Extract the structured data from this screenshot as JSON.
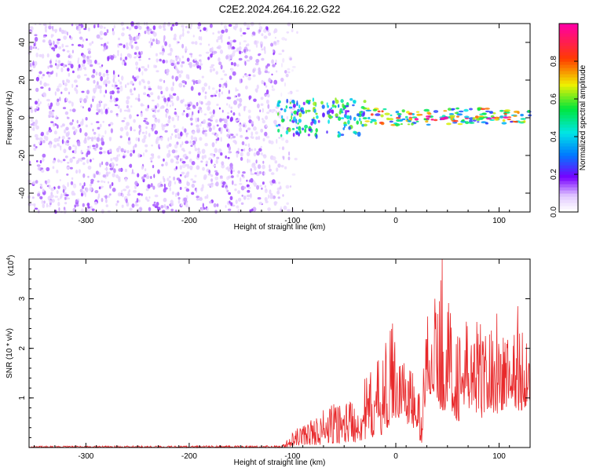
{
  "title": "C2E2.2024.264.16.22.G22",
  "colorbar": {
    "label": "Normalized spectral amplitude",
    "ticks": [
      {
        "value": 0.0,
        "label": "0.0"
      },
      {
        "value": 0.2,
        "label": "0.2"
      },
      {
        "value": 0.4,
        "label": "0.4"
      },
      {
        "value": 0.6,
        "label": "0.6"
      },
      {
        "value": 0.8,
        "label": "0.8"
      }
    ]
  },
  "chart_data": [
    {
      "type": "heatmap",
      "xlabel": "Height of straight line (km)",
      "ylabel": "Frequency (Hz)",
      "xlim": [
        -355,
        130
      ],
      "ylim": [
        -50,
        50
      ],
      "xticks": [
        {
          "value": -300,
          "label": "-300"
        },
        {
          "value": -200,
          "label": "-200"
        },
        {
          "value": -100,
          "label": "-100"
        },
        {
          "value": 0,
          "label": "0"
        },
        {
          "value": 100,
          "label": "100"
        }
      ],
      "yticks": [
        {
          "value": -40,
          "label": "-40"
        },
        {
          "value": -20,
          "label": "-20"
        },
        {
          "value": 0,
          "label": "0"
        },
        {
          "value": 20,
          "label": "20"
        },
        {
          "value": 40,
          "label": "40"
        }
      ],
      "regions": [
        {
          "x": [
            -355,
            -115
          ],
          "y": [
            -50,
            50
          ],
          "amplitude": 0.1,
          "density": 0.75
        },
        {
          "x": [
            -115,
            -95
          ],
          "y": [
            -50,
            50
          ],
          "amplitude": 0.06,
          "density": 0.35
        },
        {
          "x": [
            -115,
            -30
          ],
          "y": [
            -10,
            10
          ],
          "amplitude": 0.4,
          "density": 0.9
        },
        {
          "x": [
            -30,
            130
          ],
          "y": [
            -4,
            5
          ],
          "amplitude": 0.55,
          "density": 1.0
        },
        {
          "x": [
            10,
            130
          ],
          "y": [
            -1,
            1
          ],
          "amplitude": 0.9,
          "density": 1.0
        }
      ]
    },
    {
      "type": "line",
      "xlabel": "Height of straight line (km)",
      "ylabel": "SNR (10 * v/v)",
      "yscale_label": "(x10",
      "yscale_exp": "4",
      "xlim": [
        -355,
        130
      ],
      "ylim": [
        0,
        3.8
      ],
      "xticks": [
        {
          "value": -300,
          "label": "-300"
        },
        {
          "value": -200,
          "label": "-200"
        },
        {
          "value": -100,
          "label": "-100"
        },
        {
          "value": 0,
          "label": "0"
        },
        {
          "value": 100,
          "label": "100"
        }
      ],
      "yticks": [
        {
          "value": 1,
          "label": "1"
        },
        {
          "value": 2,
          "label": "2"
        },
        {
          "value": 3,
          "label": "3"
        }
      ],
      "color": "#e8282a",
      "envelope": {
        "x": [
          -355,
          -110,
          -100,
          -90,
          -80,
          -70,
          -60,
          -50,
          -40,
          -30,
          -20,
          -10,
          -5,
          0,
          10,
          20,
          25,
          30,
          40,
          45,
          50,
          60,
          70,
          80,
          90,
          100,
          110,
          120,
          130
        ],
        "y_min": [
          0.0,
          0.0,
          0.02,
          0.05,
          0.05,
          0.05,
          0.08,
          0.1,
          0.1,
          0.15,
          0.2,
          0.3,
          0.5,
          0.6,
          0.5,
          0.3,
          0.05,
          1.1,
          1.0,
          0.6,
          0.9,
          0.5,
          0.8,
          0.5,
          0.8,
          0.6,
          0.9,
          0.7,
          0.9
        ],
        "y_max": [
          0.03,
          0.04,
          0.3,
          0.5,
          0.6,
          0.8,
          0.9,
          1.0,
          1.1,
          1.4,
          1.7,
          2.1,
          2.5,
          2.3,
          1.9,
          1.4,
          1.0,
          2.9,
          3.0,
          3.8,
          3.0,
          2.5,
          2.6,
          2.7,
          2.4,
          2.6,
          2.3,
          2.6,
          2.2
        ]
      },
      "peaks": [
        {
          "x": -3,
          "y": 2.5
        },
        {
          "x": 38,
          "y": 3.0
        },
        {
          "x": 45,
          "y": 3.8
        },
        {
          "x": 98,
          "y": 2.7
        },
        {
          "x": 118,
          "y": 2.85
        }
      ]
    }
  ]
}
